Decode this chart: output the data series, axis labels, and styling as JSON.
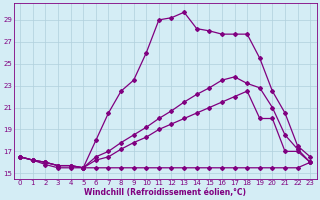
{
  "xlabel": "Windchill (Refroidissement éolien,°C)",
  "background_color": "#d4edf5",
  "grid_color": "#b0d0dc",
  "line_color": "#800080",
  "xlim": [
    -0.5,
    23.5
  ],
  "ylim": [
    14.5,
    30.5
  ],
  "xticks": [
    0,
    1,
    2,
    3,
    4,
    5,
    6,
    7,
    8,
    9,
    10,
    11,
    12,
    13,
    14,
    15,
    16,
    17,
    18,
    19,
    20,
    21,
    22,
    23
  ],
  "yticks": [
    15,
    17,
    19,
    21,
    23,
    25,
    27,
    29
  ],
  "line1_x": [
    0,
    1,
    2,
    3,
    4,
    5,
    6,
    7,
    8,
    9,
    10,
    11,
    12,
    13,
    14,
    15,
    16,
    17,
    18,
    19,
    20,
    21,
    22,
    23
  ],
  "line1_y": [
    16.5,
    16.2,
    16.0,
    15.7,
    15.7,
    15.5,
    18.0,
    20.5,
    22.5,
    23.5,
    26.0,
    29.0,
    29.2,
    29.7,
    28.2,
    28.0,
    27.7,
    27.7,
    27.7,
    25.5,
    22.5,
    20.5,
    17.5,
    16.5
  ],
  "line2_x": [
    0,
    1,
    2,
    3,
    4,
    5,
    6,
    7,
    8,
    9,
    10,
    11,
    12,
    13,
    14,
    15,
    16,
    17,
    18,
    19,
    20,
    21,
    22,
    23
  ],
  "line2_y": [
    16.5,
    16.2,
    16.0,
    15.7,
    15.7,
    15.5,
    16.5,
    17.0,
    17.8,
    18.5,
    19.2,
    20.0,
    20.7,
    21.5,
    22.2,
    22.8,
    23.5,
    23.8,
    23.2,
    22.8,
    21.0,
    18.5,
    17.2,
    16.0
  ],
  "line3_x": [
    0,
    1,
    2,
    3,
    4,
    5,
    6,
    7,
    8,
    9,
    10,
    11,
    12,
    13,
    14,
    15,
    16,
    17,
    18,
    19,
    20,
    21,
    22,
    23
  ],
  "line3_y": [
    16.5,
    16.2,
    16.0,
    15.7,
    15.7,
    15.5,
    16.2,
    16.5,
    17.2,
    17.8,
    18.3,
    19.0,
    19.5,
    20.0,
    20.5,
    21.0,
    21.5,
    22.0,
    22.5,
    20.0,
    20.0,
    17.0,
    17.0,
    16.0
  ],
  "line4_x": [
    0,
    1,
    2,
    3,
    4,
    5,
    6,
    7,
    8,
    9,
    10,
    11,
    12,
    13,
    14,
    15,
    16,
    17,
    18,
    19,
    20,
    21,
    22,
    23
  ],
  "line4_y": [
    16.5,
    16.2,
    15.8,
    15.5,
    15.5,
    15.5,
    15.5,
    15.5,
    15.5,
    15.5,
    15.5,
    15.5,
    15.5,
    15.5,
    15.5,
    15.5,
    15.5,
    15.5,
    15.5,
    15.5,
    15.5,
    15.5,
    15.5,
    16.0
  ],
  "marker": "D",
  "markersize": 2.0,
  "linewidth": 0.9,
  "axis_fontsize": 5.5,
  "tick_fontsize": 5.0
}
